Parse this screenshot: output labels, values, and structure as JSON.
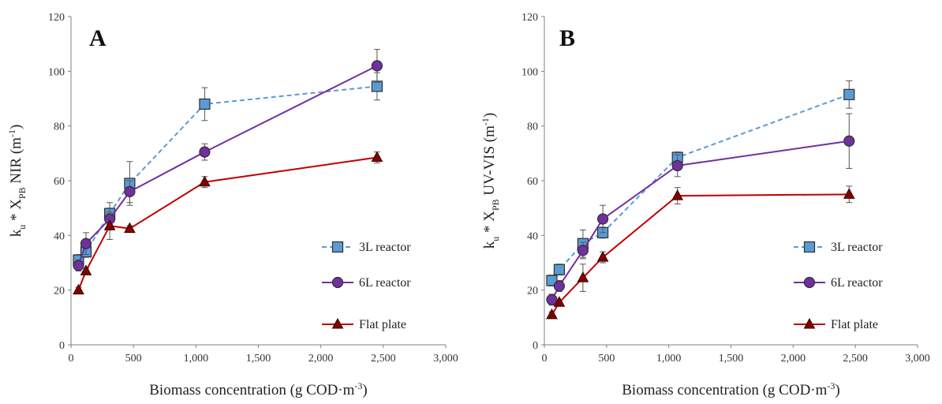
{
  "chart_data": [
    {
      "type": "line",
      "panel_label": "A",
      "xlabel": "Biomass concentration (g COD·m",
      "xlabel_sup": "-3",
      "xlabel_end": ")",
      "ylabel": "k",
      "ylabel_sub1": "u",
      "ylabel_mid": " * X",
      "ylabel_sub2": "PB",
      "ylabel_tail": " NIR (m",
      "ylabel_sup": "-1",
      "ylabel_end": ")",
      "xlim": [
        0,
        3000
      ],
      "ylim": [
        0,
        120
      ],
      "xticks": [
        0,
        500,
        1000,
        1500,
        2000,
        2500,
        3000
      ],
      "xtick_labels": [
        "0",
        "500",
        "1,000",
        "1,500",
        "2,000",
        "2,500",
        "3,000"
      ],
      "yticks": [
        0,
        20,
        40,
        60,
        80,
        100,
        120
      ],
      "ytick_labels": [
        "0",
        "20",
        "40",
        "60",
        "80",
        "100",
        "120"
      ],
      "legend_position": "right",
      "series": [
        {
          "name": "3L reactor",
          "marker": "square",
          "line": "dashed",
          "color": "#5b9bd5",
          "fill": "#5b9bd5",
          "x": [
            60,
            120,
            310,
            470,
            1070,
            2450
          ],
          "y": [
            31,
            34,
            48,
            59,
            88,
            94.5
          ],
          "err": [
            2,
            2,
            4,
            8,
            6,
            5
          ]
        },
        {
          "name": "6L reactor",
          "marker": "circle",
          "line": "solid",
          "color": "#7030a0",
          "fill": "#7030a0",
          "x": [
            60,
            120,
            310,
            470,
            1070,
            2450
          ],
          "y": [
            29,
            37,
            46,
            56,
            70.5,
            102
          ],
          "err": [
            2,
            4,
            4,
            4,
            3,
            6
          ]
        },
        {
          "name": "Flat plate",
          "marker": "triangle",
          "line": "solid",
          "color": "#c00000",
          "fill": "#7f0000",
          "x": [
            60,
            120,
            310,
            470,
            1070,
            2450
          ],
          "y": [
            20,
            27,
            43.5,
            42.5,
            59.5,
            68.5
          ],
          "err": [
            1,
            1,
            5,
            1,
            2,
            2
          ]
        }
      ]
    },
    {
      "type": "line",
      "panel_label": "B",
      "xlabel": "Biomass concentration (g COD·m",
      "xlabel_sup": "-3",
      "xlabel_end": ")",
      "ylabel": "k",
      "ylabel_sub1": "u",
      "ylabel_mid": " * X",
      "ylabel_sub2": "PB",
      "ylabel_tail": " UV-VIS (m",
      "ylabel_sup": "-1",
      "ylabel_end": ")",
      "xlim": [
        0,
        3000
      ],
      "ylim": [
        0,
        120
      ],
      "xticks": [
        0,
        500,
        1000,
        1500,
        2000,
        2500,
        3000
      ],
      "xtick_labels": [
        "0",
        "500",
        "1,000",
        "1,500",
        "2,000",
        "2,500",
        "3,000"
      ],
      "yticks": [
        0,
        20,
        40,
        60,
        80,
        100,
        120
      ],
      "ytick_labels": [
        "0",
        "20",
        "40",
        "60",
        "80",
        "100",
        "120"
      ],
      "legend_position": "right",
      "series": [
        {
          "name": "3L reactor",
          "marker": "square",
          "line": "dashed",
          "color": "#5b9bd5",
          "fill": "#5b9bd5",
          "x": [
            60,
            120,
            310,
            470,
            1070,
            2450
          ],
          "y": [
            23.5,
            27.5,
            37,
            41,
            68.5,
            91.5
          ],
          "err": [
            2,
            2,
            5,
            2,
            2,
            5
          ]
        },
        {
          "name": "6L reactor",
          "marker": "circle",
          "line": "solid",
          "color": "#7030a0",
          "fill": "#7030a0",
          "x": [
            60,
            120,
            310,
            470,
            1070,
            2450
          ],
          "y": [
            16.5,
            21.5,
            34.5,
            46,
            65.5,
            74.5
          ],
          "err": [
            2,
            2,
            3,
            5,
            4,
            10
          ]
        },
        {
          "name": "Flat plate",
          "marker": "triangle",
          "line": "solid",
          "color": "#c00000",
          "fill": "#7f0000",
          "x": [
            60,
            120,
            310,
            470,
            1070,
            2450
          ],
          "y": [
            11,
            15.5,
            24.5,
            32,
            54.5,
            55
          ],
          "err": [
            1,
            1,
            5,
            2,
            3,
            3
          ]
        }
      ]
    }
  ]
}
